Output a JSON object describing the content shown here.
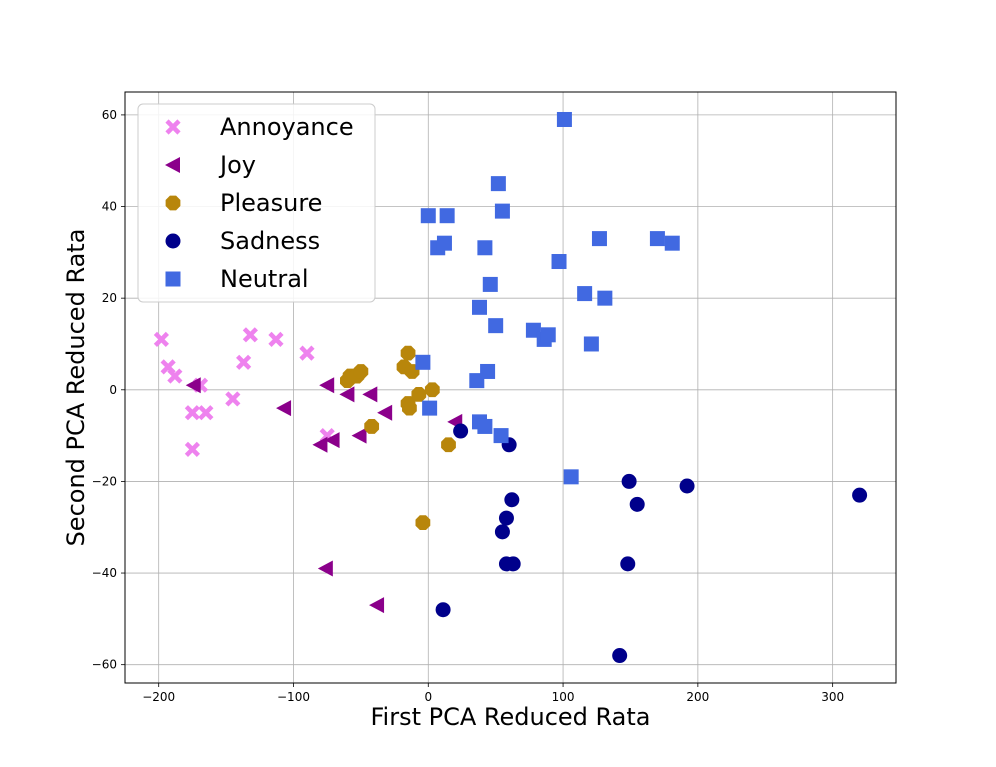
{
  "chart_data": {
    "type": "scatter",
    "title": "",
    "xlabel": "First PCA Reduced Rata",
    "ylabel": "Second PCA Reduced Rata",
    "xlim": [
      -225,
      347
    ],
    "ylim": [
      -64,
      65
    ],
    "xticks": [
      -200,
      -100,
      0,
      100,
      200,
      300
    ],
    "yticks": [
      -60,
      -40,
      -20,
      0,
      20,
      40,
      60
    ],
    "grid": true,
    "legend_position": "top-left",
    "series": [
      {
        "name": "Annoyance",
        "marker": "x-filled",
        "color": "#ee82ee",
        "points": [
          [
            -198,
            11
          ],
          [
            -193,
            5
          ],
          [
            -188,
            3
          ],
          [
            -175,
            -5
          ],
          [
            -175,
            -13
          ],
          [
            -169,
            1
          ],
          [
            -165,
            -5
          ],
          [
            -145,
            -2
          ],
          [
            -137,
            6
          ],
          [
            -132,
            12
          ],
          [
            -113,
            11
          ],
          [
            -90,
            8
          ],
          [
            -75,
            -10
          ]
        ]
      },
      {
        "name": "Joy",
        "marker": "triangle-left",
        "color": "#8b008b",
        "points": [
          [
            -174,
            1
          ],
          [
            -107,
            -4
          ],
          [
            -80,
            -12
          ],
          [
            -76,
            -39
          ],
          [
            -75,
            1
          ],
          [
            -71,
            -11
          ],
          [
            -60,
            -1
          ],
          [
            -51,
            -10
          ],
          [
            -43,
            -1
          ],
          [
            -38,
            -47
          ],
          [
            -32,
            -5
          ],
          [
            20,
            -7
          ]
        ]
      },
      {
        "name": "Pleasure",
        "marker": "octagon",
        "color": "#b8860b",
        "points": [
          [
            -60,
            2
          ],
          [
            -58,
            3
          ],
          [
            -53,
            3
          ],
          [
            -50,
            4
          ],
          [
            -42,
            -8
          ],
          [
            -18,
            5
          ],
          [
            -15,
            8
          ],
          [
            -15,
            -3
          ],
          [
            -14,
            -4
          ],
          [
            -12,
            4
          ],
          [
            -7,
            -1
          ],
          [
            -4,
            -29
          ],
          [
            3,
            0
          ],
          [
            15,
            -12
          ]
        ]
      },
      {
        "name": "Sadness",
        "marker": "circle",
        "color": "#00008b",
        "points": [
          [
            11,
            -48
          ],
          [
            24,
            -9
          ],
          [
            55,
            -31
          ],
          [
            58,
            -28
          ],
          [
            58,
            -38
          ],
          [
            60,
            -12
          ],
          [
            62,
            -24
          ],
          [
            63,
            -38
          ],
          [
            142,
            -58
          ],
          [
            148,
            -38
          ],
          [
            149,
            -20
          ],
          [
            155,
            -25
          ],
          [
            192,
            -21
          ],
          [
            320,
            -23
          ]
        ]
      },
      {
        "name": "Neutral",
        "marker": "square",
        "color": "#4169e1",
        "points": [
          [
            -4,
            6
          ],
          [
            0,
            38
          ],
          [
            1,
            -4
          ],
          [
            7,
            31
          ],
          [
            12,
            32
          ],
          [
            14,
            38
          ],
          [
            36,
            2
          ],
          [
            38,
            18
          ],
          [
            38,
            -7
          ],
          [
            42,
            31
          ],
          [
            42,
            -8
          ],
          [
            44,
            4
          ],
          [
            46,
            23
          ],
          [
            50,
            14
          ],
          [
            52,
            45
          ],
          [
            54,
            -10
          ],
          [
            55,
            39
          ],
          [
            78,
            13
          ],
          [
            86,
            11
          ],
          [
            89,
            12
          ],
          [
            97,
            28
          ],
          [
            101,
            59
          ],
          [
            106,
            -19
          ],
          [
            116,
            21
          ],
          [
            121,
            10
          ],
          [
            127,
            33
          ],
          [
            131,
            20
          ],
          [
            170,
            33
          ],
          [
            181,
            32
          ]
        ]
      }
    ]
  }
}
